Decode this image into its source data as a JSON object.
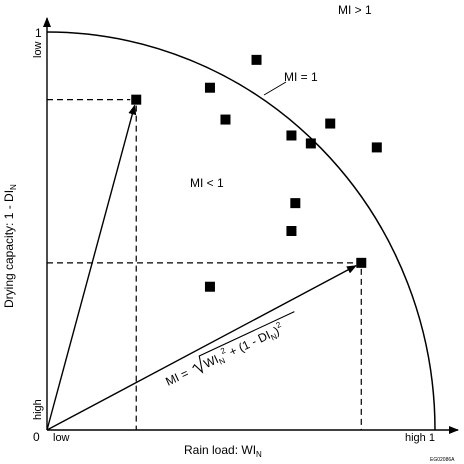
{
  "axes": {
    "y_label_main": "Drying capacity: 1 - DI",
    "y_label_sub": "N",
    "x_label_main": "Rain load: WI",
    "x_label_sub": "N",
    "y_tick_top": "1",
    "y_low": "low",
    "y_high": "high",
    "origin": "0",
    "x_low": "low",
    "x_high": "high 1"
  },
  "regions": {
    "mi_gt": "MI > 1",
    "mi_eq": "MI = 1",
    "mi_lt": "MI < 1"
  },
  "formula": {
    "lhs": "MI = ",
    "t1": "WI",
    "s1": "N",
    "p1": "2",
    "t2": " + (1 - DI",
    "s2": "N",
    "t3": ")",
    "p2": "2"
  },
  "figure_code": "EG02086A",
  "chart_data": {
    "type": "scatter",
    "xlabel": "Rain load: WI N",
    "ylabel": "Drying capacity: 1 - DI N",
    "xlim": [
      0,
      1
    ],
    "ylim": [
      0,
      1
    ],
    "grid": false,
    "boundary": "quarter circle MI = 1",
    "points": [
      {
        "x": 0.23,
        "y": 0.83
      },
      {
        "x": 0.42,
        "y": 0.86
      },
      {
        "x": 0.54,
        "y": 0.93
      },
      {
        "x": 0.46,
        "y": 0.78
      },
      {
        "x": 0.63,
        "y": 0.74
      },
      {
        "x": 0.68,
        "y": 0.72
      },
      {
        "x": 0.73,
        "y": 0.77
      },
      {
        "x": 0.85,
        "y": 0.71
      },
      {
        "x": 0.64,
        "y": 0.57
      },
      {
        "x": 0.63,
        "y": 0.5
      },
      {
        "x": 0.42,
        "y": 0.36
      },
      {
        "x": 0.81,
        "y": 0.42
      }
    ],
    "vectors": [
      {
        "x": 0.23,
        "y": 0.83
      },
      {
        "x": 0.81,
        "y": 0.42
      }
    ]
  }
}
